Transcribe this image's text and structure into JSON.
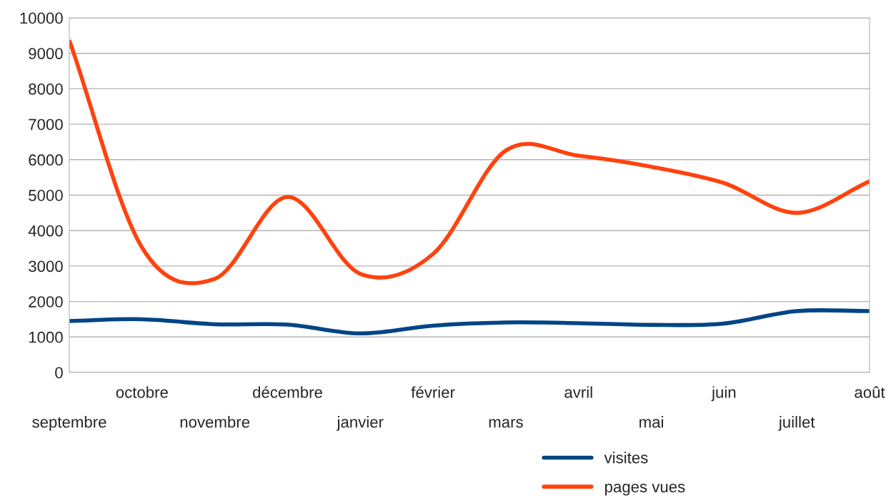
{
  "chart_data": {
    "type": "line",
    "categories": [
      "septembre",
      "octobre",
      "novembre",
      "décembre",
      "janvier",
      "février",
      "mars",
      "avril",
      "mai",
      "juin",
      "juillet",
      "août"
    ],
    "series": [
      {
        "name": "visites",
        "color": "#004586",
        "values": [
          1450,
          1500,
          1360,
          1350,
          1100,
          1320,
          1410,
          1390,
          1340,
          1380,
          1730,
          1730
        ]
      },
      {
        "name": "pages vues",
        "color": "#ff420e",
        "values": [
          9370,
          3520,
          2640,
          4950,
          2780,
          3340,
          6260,
          6110,
          5800,
          5340,
          4500,
          5390
        ]
      }
    ],
    "ylim": [
      0,
      10000
    ],
    "yticks": [
      0,
      1000,
      2000,
      3000,
      4000,
      5000,
      6000,
      7000,
      8000,
      9000,
      10000
    ],
    "grid": "y",
    "legend": "bottom",
    "marker": "none",
    "line_style": "solid"
  }
}
